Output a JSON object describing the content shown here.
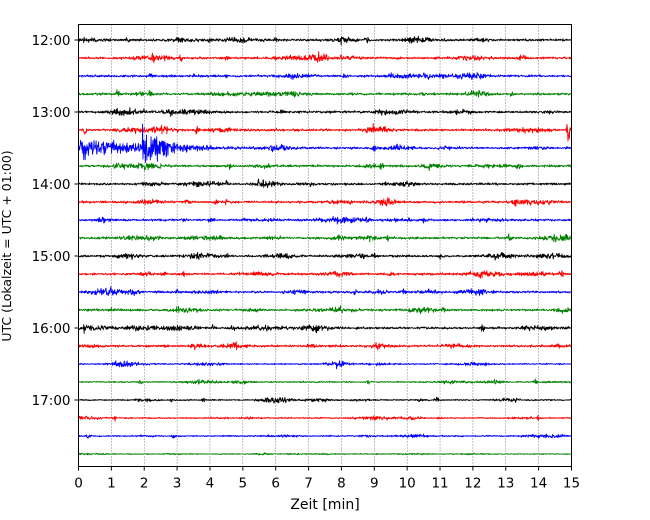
{
  "chart_data": {
    "type": "line",
    "title": "",
    "xlabel": "Zeit  [min]",
    "ylabel": "UTC (Lokalzeit = UTC + 01:00)",
    "xlim": [
      0,
      15
    ],
    "x_ticks": [
      "0",
      "1",
      "2",
      "3",
      "4",
      "5",
      "6",
      "7",
      "8",
      "9",
      "10",
      "11",
      "12",
      "13",
      "14",
      "15"
    ],
    "y_ticks": [
      "12:00",
      "13:00",
      "14:00",
      "15:00",
      "16:00",
      "17:00"
    ],
    "grid": "vertical dotted",
    "trace_colors": [
      "#000000",
      "#ff0000",
      "#0000ff",
      "#008000"
    ],
    "traces": [
      {
        "start": "12:00",
        "color": "#000000",
        "amp": 2.0,
        "spikes": [
          [
            1.5,
            3
          ],
          [
            4.0,
            3
          ],
          [
            6.0,
            3
          ],
          [
            8.0,
            4
          ],
          [
            8.8,
            4
          ]
        ]
      },
      {
        "start": "12:15",
        "color": "#ff0000",
        "amp": 2.0,
        "spikes": [
          [
            2.3,
            3
          ],
          [
            3.1,
            5
          ],
          [
            4.5,
            3
          ],
          [
            6.0,
            3
          ],
          [
            8.0,
            3
          ]
        ]
      },
      {
        "start": "12:30",
        "color": "#0000ff",
        "amp": 2.0,
        "spikes": [
          [
            2.2,
            3
          ],
          [
            3.5,
            3
          ],
          [
            4.5,
            3
          ],
          [
            8.1,
            6
          ],
          [
            9.5,
            3
          ]
        ]
      },
      {
        "start": "12:45",
        "color": "#008000",
        "amp": 2.0,
        "spikes": [
          [
            1.2,
            7
          ],
          [
            2.2,
            5
          ],
          [
            10.5,
            3
          ],
          [
            14.0,
            3
          ],
          [
            13.2,
            3
          ]
        ]
      },
      {
        "start": "13:00",
        "color": "#000000",
        "amp": 2.0,
        "spikes": [
          [
            1.2,
            3
          ],
          [
            2.0,
            4
          ],
          [
            6.2,
            3
          ],
          [
            11.3,
            3
          ]
        ]
      },
      {
        "start": "13:15",
        "color": "#ff0000",
        "amp": 2.0,
        "spikes": [
          [
            0.2,
            8
          ],
          [
            3.6,
            5
          ],
          [
            14.9,
            16
          ],
          [
            6.0,
            3
          ]
        ]
      },
      {
        "start": "13:30",
        "color": "#0000ff",
        "amp": 2.0,
        "quake": [
          2.0,
          28
        ],
        "spikes": [
          [
            9.0,
            4
          ]
        ]
      },
      {
        "start": "13:45",
        "color": "#008000",
        "amp": 2.0,
        "spikes": [
          [
            2.5,
            3
          ],
          [
            4.6,
            3
          ],
          [
            9.2,
            5
          ],
          [
            13.4,
            6
          ]
        ]
      },
      {
        "start": "14:00",
        "color": "#000000",
        "amp": 2.0,
        "spikes": [
          [
            2.0,
            3
          ],
          [
            4.5,
            5
          ],
          [
            5.5,
            3
          ],
          [
            9.3,
            5
          ]
        ]
      },
      {
        "start": "14:15",
        "color": "#ff0000",
        "amp": 2.0,
        "spikes": [
          [
            3.3,
            4
          ],
          [
            4.2,
            5
          ],
          [
            4.5,
            5
          ],
          [
            13.3,
            4
          ]
        ]
      },
      {
        "start": "14:30",
        "color": "#0000ff",
        "amp": 2.0,
        "spikes": [
          [
            3.2,
            3
          ],
          [
            4.0,
            3
          ],
          [
            8.8,
            5
          ],
          [
            10.5,
            3
          ]
        ]
      },
      {
        "start": "14:45",
        "color": "#008000",
        "amp": 2.0,
        "spikes": [
          [
            4.3,
            3
          ],
          [
            9.4,
            5
          ],
          [
            13.1,
            6
          ],
          [
            6.1,
            3
          ]
        ]
      },
      {
        "start": "15:00",
        "color": "#000000",
        "amp": 2.0,
        "spikes": [
          [
            4.5,
            3
          ],
          [
            8.6,
            4
          ],
          [
            9.0,
            3
          ],
          [
            11.0,
            3
          ]
        ]
      },
      {
        "start": "15:15",
        "color": "#ff0000",
        "amp": 2.0,
        "spikes": [
          [
            2.6,
            4
          ],
          [
            3.2,
            4
          ],
          [
            9.5,
            4
          ],
          [
            14.7,
            6
          ]
        ]
      },
      {
        "start": "15:30",
        "color": "#0000ff",
        "amp": 2.0,
        "spikes": [
          [
            1.0,
            3
          ],
          [
            3.0,
            3
          ],
          [
            9.9,
            5
          ],
          [
            8.4,
            3
          ]
        ]
      },
      {
        "start": "15:45",
        "color": "#008000",
        "amp": 2.0,
        "spikes": [
          [
            1.0,
            6
          ],
          [
            3.0,
            3
          ],
          [
            8.0,
            4
          ],
          [
            11.1,
            3
          ]
        ]
      },
      {
        "start": "16:00",
        "color": "#000000",
        "amp": 2.0,
        "spikes": [
          [
            0.2,
            5
          ],
          [
            3.0,
            4
          ],
          [
            4.1,
            4
          ],
          [
            4.7,
            5
          ],
          [
            7.2,
            4
          ],
          [
            12.3,
            4
          ]
        ]
      },
      {
        "start": "16:15",
        "color": "#ff0000",
        "amp": 2.0,
        "spikes": [
          [
            2.6,
            3
          ],
          [
            4.8,
            4
          ],
          [
            9.1,
            4
          ]
        ]
      },
      {
        "start": "16:30",
        "color": "#0000ff",
        "amp": 1.2,
        "spikes": [
          [
            7.9,
            6
          ]
        ]
      },
      {
        "start": "16:45",
        "color": "#008000",
        "amp": 1.2,
        "spikes": [
          [
            1.9,
            3
          ],
          [
            8.8,
            3
          ],
          [
            13.9,
            4
          ]
        ]
      },
      {
        "start": "17:00",
        "color": "#000000",
        "amp": 1.2,
        "spikes": [
          [
            2.8,
            3
          ],
          [
            3.8,
            3
          ],
          [
            10.4,
            3
          ],
          [
            10.9,
            4
          ],
          [
            13.3,
            3
          ]
        ]
      },
      {
        "start": "17:15",
        "color": "#ff0000",
        "amp": 1.2,
        "spikes": [
          [
            1.1,
            5
          ],
          [
            11.0,
            3
          ],
          [
            14.0,
            3
          ]
        ]
      },
      {
        "start": "17:30",
        "color": "#0000ff",
        "amp": 1.2,
        "spikes": [
          [
            0.3,
            3
          ],
          [
            2.9,
            3
          ]
        ]
      },
      {
        "start": "17:45",
        "color": "#008000",
        "amp": 0.8,
        "spikes": []
      }
    ]
  }
}
